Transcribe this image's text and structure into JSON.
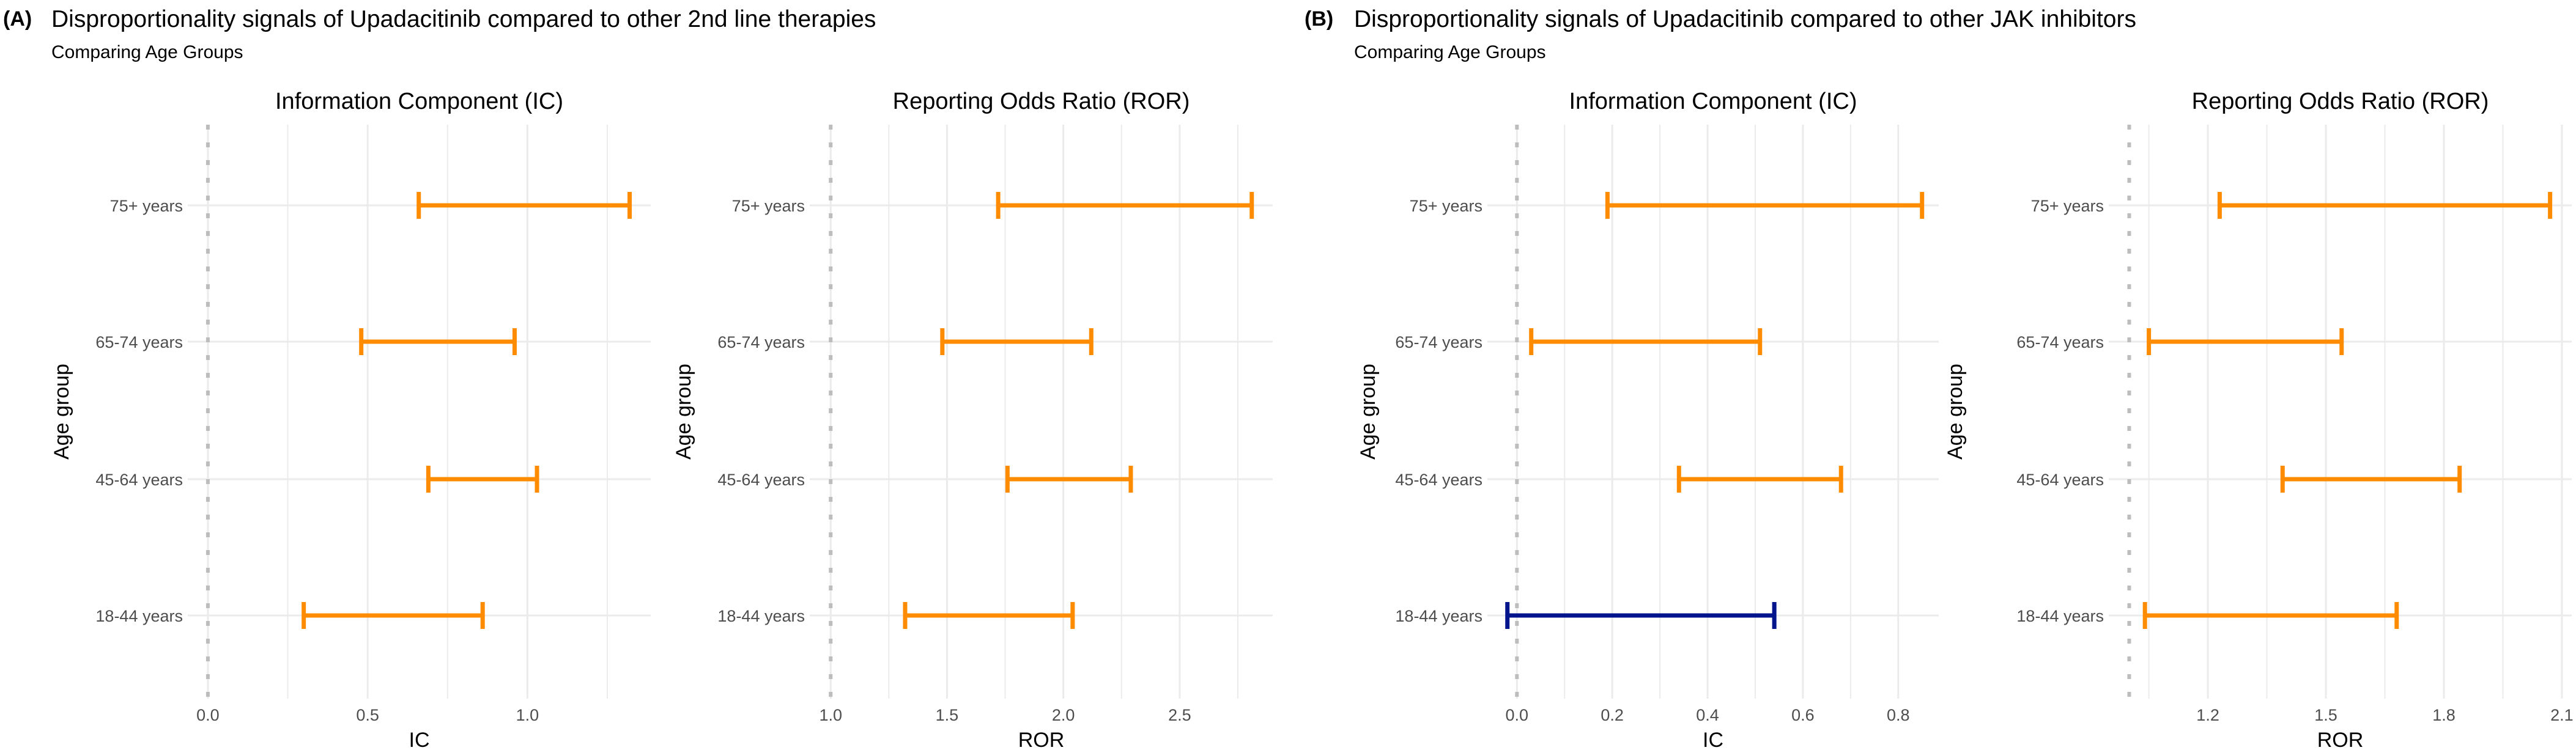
{
  "figure": {
    "panels": [
      {
        "tag": "(A)",
        "title": "Disproportionality signals of Upadacitinib compared to other 2nd line therapies",
        "subtitle": "Comparing Age Groups"
      },
      {
        "tag": "(B)",
        "title": "Disproportionality signals of Upadacitinib compared to other JAK inhibitors",
        "subtitle": "Comparing Age Groups"
      }
    ],
    "colors": {
      "signal": "#FF8C00",
      "no_signal": "#00148C",
      "grid": "#EBEBEB",
      "reference_line": "#BDBDBD"
    }
  },
  "chart_data": [
    {
      "type": "errorbar",
      "panel": "A",
      "title": "Information Component (IC)",
      "xlabel": "IC",
      "ylabel": "Age group",
      "categories": [
        "75+ years",
        "65-74 years",
        "45-64 years",
        "18-44 years"
      ],
      "lower": [
        0.66,
        0.48,
        0.69,
        0.3
      ],
      "upper": [
        1.32,
        0.96,
        1.03,
        0.86
      ],
      "signal": [
        true,
        true,
        true,
        true
      ],
      "reference": 0.0,
      "xlim": [
        -0.063,
        1.386
      ],
      "major_ticks": [
        0.0,
        0.5,
        1.0
      ],
      "tick_labels": [
        "0.0",
        "0.5",
        "1.0"
      ],
      "minor_ticks": [
        0.25,
        0.75,
        1.25
      ]
    },
    {
      "type": "errorbar",
      "panel": "A",
      "title": "Reporting Odds Ratio (ROR)",
      "xlabel": "ROR",
      "ylabel": "Age group",
      "categories": [
        "75+ years",
        "65-74 years",
        "45-64 years",
        "18-44 years"
      ],
      "lower": [
        1.72,
        1.48,
        1.76,
        1.32
      ],
      "upper": [
        2.81,
        2.12,
        2.29,
        2.04
      ],
      "signal": [
        true,
        true,
        true,
        true
      ],
      "reference": 1.0,
      "xlim": [
        0.91,
        2.9
      ],
      "major_ticks": [
        1.0,
        1.5,
        2.0,
        2.5
      ],
      "tick_labels": [
        "1.0",
        "1.5",
        "2.0",
        "2.5"
      ],
      "minor_ticks": [
        1.25,
        1.75,
        2.25,
        2.75
      ]
    },
    {
      "type": "errorbar",
      "panel": "B",
      "title": "Information Component (IC)",
      "xlabel": "IC",
      "ylabel": "Age group",
      "categories": [
        "75+ years",
        "65-74 years",
        "45-64 years",
        "18-44 years"
      ],
      "lower": [
        0.19,
        0.03,
        0.34,
        -0.02
      ],
      "upper": [
        0.85,
        0.51,
        0.68,
        0.54
      ],
      "signal": [
        true,
        true,
        true,
        false
      ],
      "reference": 0.0,
      "xlim": [
        -0.062,
        0.885
      ],
      "major_ticks": [
        0.0,
        0.2,
        0.4,
        0.6,
        0.8
      ],
      "tick_labels": [
        "0.0",
        "0.2",
        "0.4",
        "0.6",
        "0.8"
      ],
      "minor_ticks": [
        0.1,
        0.3,
        0.5,
        0.7
      ]
    },
    {
      "type": "errorbar",
      "panel": "B",
      "title": "Reporting Odds Ratio (ROR)",
      "xlabel": "ROR",
      "ylabel": "Age group",
      "categories": [
        "75+ years",
        "65-74 years",
        "45-64 years",
        "18-44 years"
      ],
      "lower": [
        1.23,
        1.05,
        1.39,
        1.04
      ],
      "upper": [
        2.07,
        1.54,
        1.84,
        1.68
      ],
      "signal": [
        true,
        true,
        true,
        true
      ],
      "reference": 1.0,
      "xlim": [
        0.948,
        2.125
      ],
      "major_ticks": [
        1.2,
        1.5,
        1.8,
        2.1
      ],
      "tick_labels": [
        "1.2",
        "1.5",
        "1.8",
        "2.1"
      ],
      "minor_ticks": [
        1.05,
        1.35,
        1.65,
        1.95
      ]
    }
  ]
}
